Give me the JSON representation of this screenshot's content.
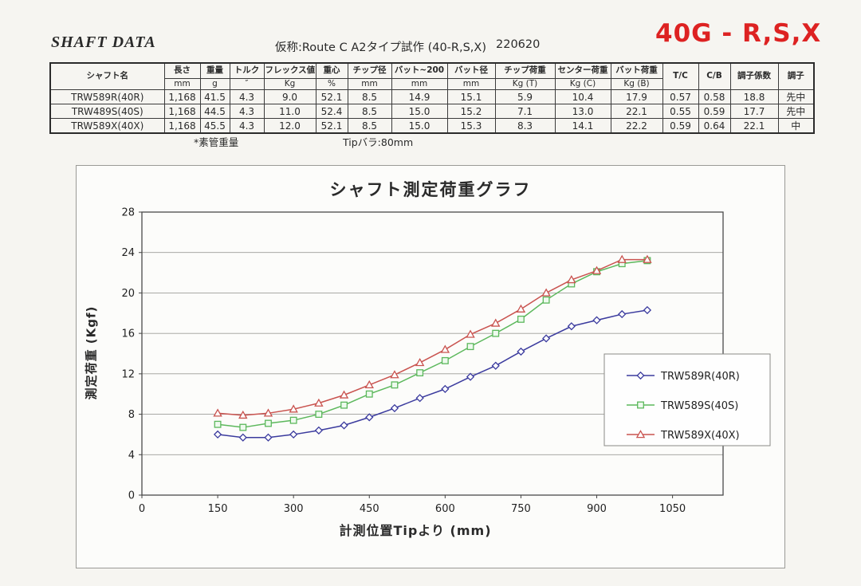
{
  "header": {
    "doc_title": "SHAFT DATA",
    "subtitle": "仮称:Route C A2タイプ試作 (40-R,S,X)",
    "date_code": "220620",
    "model_label": "40G - R,S,X",
    "model_color": "#dd2222"
  },
  "table": {
    "headers": [
      {
        "name": "シャフト名",
        "unit": null
      },
      {
        "name": "長さ",
        "unit": "mm"
      },
      {
        "name": "重量",
        "unit": "g"
      },
      {
        "name": "トルク",
        "unit": "″"
      },
      {
        "name": "フレックス値",
        "unit": "Kg"
      },
      {
        "name": "重心",
        "unit": "%"
      },
      {
        "name": "チップ径",
        "unit": "mm"
      },
      {
        "name": "バット~200",
        "unit": "mm"
      },
      {
        "name": "バット径",
        "unit": "mm"
      },
      {
        "name": "チップ荷重",
        "unit": "Kg (T)"
      },
      {
        "name": "センター荷重",
        "unit": "Kg (C)"
      },
      {
        "name": "バット荷重",
        "unit": "Kg (B)"
      },
      {
        "name": "T/C",
        "unit": null
      },
      {
        "name": "C/B",
        "unit": null
      },
      {
        "name": "調子係数",
        "unit": null
      },
      {
        "name": "調子",
        "unit": null
      }
    ],
    "rows": [
      [
        "TRW589R(40R)",
        "1,168",
        "41.5",
        "4.3",
        "9.0",
        "52.1",
        "8.5",
        "14.9",
        "15.1",
        "5.9",
        "10.4",
        "17.9",
        "0.57",
        "0.58",
        "18.8",
        "先中"
      ],
      [
        "TRW489S(40S)",
        "1,168",
        "44.5",
        "4.3",
        "11.0",
        "52.4",
        "8.5",
        "15.0",
        "15.2",
        "7.1",
        "13.0",
        "22.1",
        "0.55",
        "0.59",
        "17.7",
        "先中"
      ],
      [
        "TRW589X(40X)",
        "1,168",
        "45.5",
        "4.3",
        "12.0",
        "52.1",
        "8.5",
        "15.0",
        "15.3",
        "8.3",
        "14.1",
        "22.2",
        "0.59",
        "0.64",
        "22.1",
        "中"
      ]
    ],
    "footnote_weight": "*素管重量",
    "footnote_tip": "Tipバラ:80mm"
  },
  "chart_data": {
    "type": "line",
    "title": "シャフト測定荷重グラフ",
    "xlabel": "計測位置Tipより (mm)",
    "ylabel": "測定荷重 (Kgf)",
    "x": [
      150,
      200,
      250,
      300,
      350,
      400,
      450,
      500,
      550,
      600,
      650,
      700,
      750,
      800,
      850,
      900,
      950,
      1000
    ],
    "series": [
      {
        "name": "TRW589R(40R)",
        "color": "#3b3b9e",
        "marker": "diamond",
        "values": [
          6.0,
          5.7,
          5.7,
          6.0,
          6.4,
          6.9,
          7.7,
          8.6,
          9.6,
          10.5,
          11.7,
          12.8,
          14.2,
          15.5,
          16.7,
          17.3,
          17.9,
          18.3
        ]
      },
      {
        "name": "TRW589S(40S)",
        "color": "#5cb85c",
        "marker": "square",
        "values": [
          7.0,
          6.7,
          7.1,
          7.4,
          8.0,
          8.9,
          10.0,
          10.9,
          12.1,
          13.3,
          14.7,
          16.0,
          17.4,
          19.3,
          20.9,
          22.1,
          22.9,
          23.2
        ]
      },
      {
        "name": "TRW589X(40X)",
        "color": "#c9534f",
        "marker": "triangle",
        "values": [
          8.1,
          7.9,
          8.1,
          8.5,
          9.1,
          9.9,
          10.9,
          11.9,
          13.1,
          14.4,
          15.9,
          17.0,
          18.4,
          20.0,
          21.3,
          22.2,
          23.3,
          23.3
        ]
      }
    ],
    "xlim": [
      0,
      1150
    ],
    "ylim": [
      0,
      28
    ],
    "xticks": [
      0,
      150,
      300,
      450,
      600,
      750,
      900,
      1050
    ],
    "yticks": [
      0,
      4,
      8,
      12,
      16,
      20,
      24,
      28
    ],
    "grid": "horizontal",
    "legend_position": "inside-right"
  }
}
